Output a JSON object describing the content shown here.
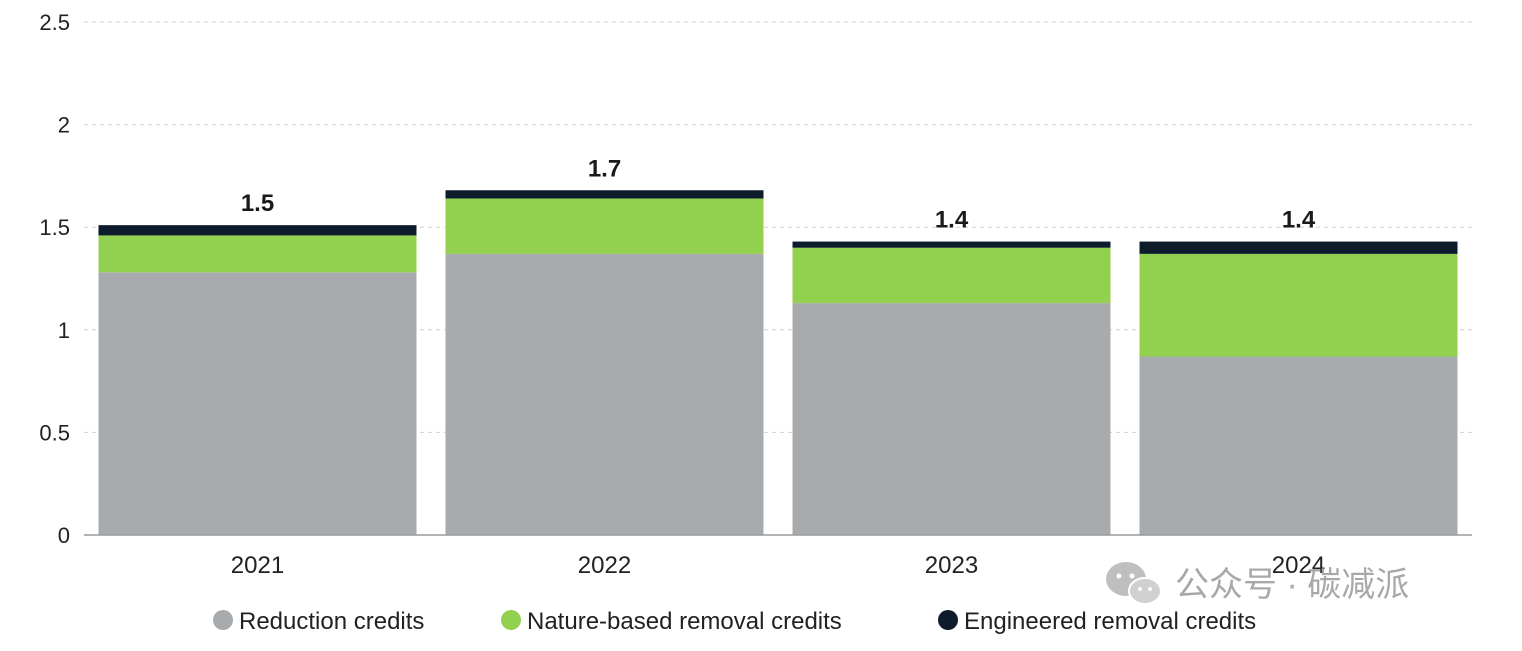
{
  "chart_data": {
    "type": "bar",
    "stacked": true,
    "title": "",
    "xlabel": "",
    "ylabel": "",
    "categories": [
      "2021",
      "2022",
      "2023",
      "2024"
    ],
    "series": [
      {
        "name": "Reduction credits",
        "color": "#a8abae",
        "values": [
          1.28,
          1.37,
          1.13,
          0.87
        ]
      },
      {
        "name": "Nature-based removal credits",
        "color": "#92d050",
        "values": [
          0.18,
          0.27,
          0.27,
          0.5
        ]
      },
      {
        "name": "Engineered removal credits",
        "color": "#0d1b2a",
        "values": [
          0.05,
          0.04,
          0.03,
          0.06
        ]
      }
    ],
    "totals": [
      "1.5",
      "1.7",
      "1.4",
      "1.4"
    ],
    "ylim": [
      0,
      2.5
    ],
    "yticks": [
      "0",
      "0.5",
      "1",
      "1.5",
      "2",
      "2.5"
    ],
    "grid": true,
    "legend_position": "bottom"
  },
  "watermark": {
    "text": "公众号 · 碳减派",
    "icon": "wechat-icon"
  }
}
